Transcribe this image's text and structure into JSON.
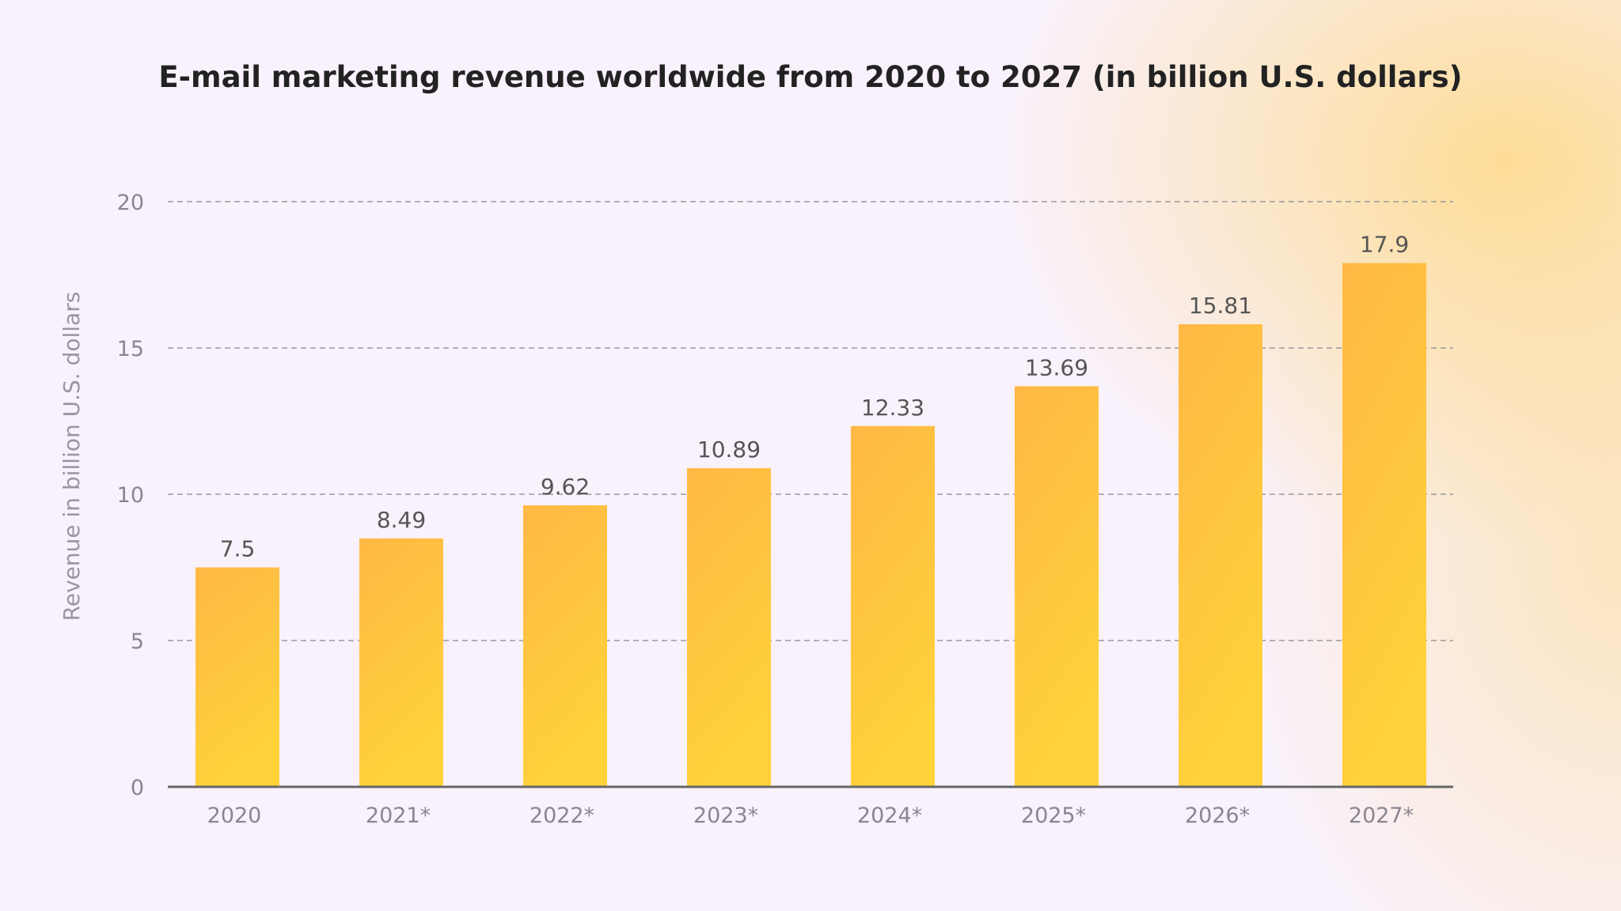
{
  "chart_data": {
    "type": "bar",
    "title": "E-mail marketing revenue worldwide from 2020 to 2027 (in billion U.S. dollars)",
    "xlabel": "",
    "ylabel": "Revenue in billion U.S. dollars",
    "categories": [
      "2020",
      "2021*",
      "2022*",
      "2023*",
      "2024*",
      "2025*",
      "2026*",
      "2027*"
    ],
    "values": [
      7.5,
      8.49,
      9.62,
      10.89,
      12.33,
      13.69,
      15.81,
      17.9
    ],
    "ylim": [
      0,
      20
    ],
    "yticks": [
      0,
      5,
      10,
      15,
      20
    ],
    "grid": true,
    "data_labels": true,
    "colors": {
      "bar_top": "#ffb845",
      "bar_bottom": "#ffd23a",
      "grid": "#9a9a9a",
      "axis": "#666666"
    }
  }
}
